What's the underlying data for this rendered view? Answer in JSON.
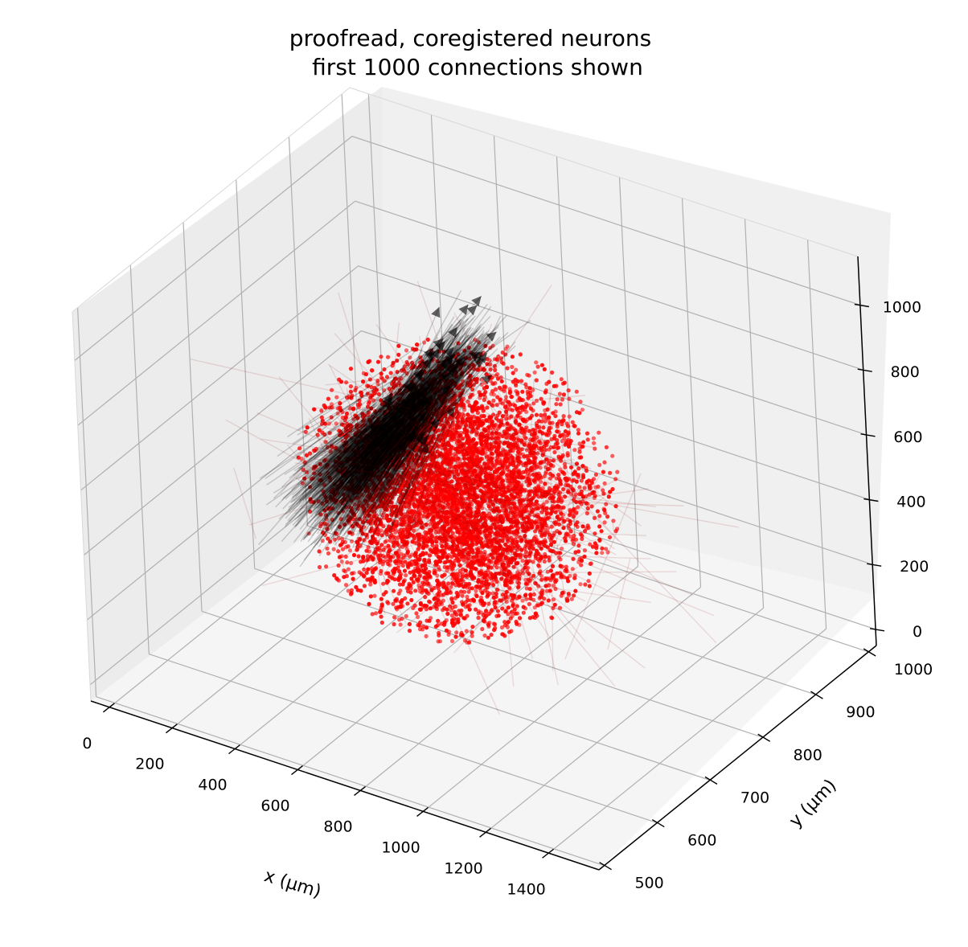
{
  "chart_data": {
    "type": "scatter",
    "projection": "3d",
    "title": [
      "proofread, coregistered neurons",
      "first 1000 connections shown"
    ],
    "xlabel": "x (μm)",
    "ylabel": "y (μm)",
    "zlabel": "",
    "x_ticks": [
      0,
      200,
      400,
      600,
      800,
      1000,
      1200,
      1400
    ],
    "y_ticks": [
      500,
      600,
      700,
      800,
      900,
      1000
    ],
    "z_ticks": [
      0,
      200,
      400,
      600,
      800,
      1000
    ],
    "xlim": [
      -60,
      1560
    ],
    "ylim": [
      490,
      1015
    ],
    "zlim": [
      -50,
      1150
    ],
    "grid": true,
    "series": [
      {
        "kind": "points",
        "color": "#ff0000",
        "description_count": "approximately 6000 neuron positions",
        "distribution": {
          "x_mean": 680,
          "x_sd": 320,
          "y_mean": 760,
          "y_sd": 95,
          "z_mean": 480,
          "z_sd": 230
        }
      },
      {
        "kind": "arrows",
        "color": "#000000",
        "count": 1000,
        "dominant_start": {
          "x": 300,
          "y": 760,
          "z": 350
        },
        "dominant_end": {
          "x": 680,
          "y": 820,
          "z": 900
        }
      }
    ]
  },
  "colors": {
    "points": "#ff0000",
    "arrows": "#000000",
    "pane_left": "#ececec",
    "pane_back": "#f0f0f0",
    "pane_floor": "#f5f5f5",
    "grid": "#b0b0b0"
  }
}
